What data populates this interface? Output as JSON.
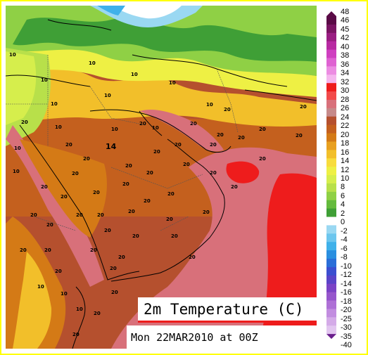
{
  "title": "2m Temperature (C)",
  "subtitle": "Mon 22MAR2010 at 00Z",
  "colorbar": {
    "min": -40,
    "max": 48,
    "labels": [
      "48",
      "46",
      "45",
      "42",
      "40",
      "38",
      "36",
      "34",
      "32",
      "30",
      "28",
      "26",
      "24",
      "22",
      "20",
      "18",
      "16",
      "14",
      "12",
      "10",
      "8",
      "6",
      "4",
      "2",
      "0",
      "-2",
      "-4",
      "-6",
      "-8",
      "-10",
      "-12",
      "-14",
      "-16",
      "-18",
      "-20",
      "-25",
      "-30",
      "-35",
      "-40"
    ],
    "colors": [
      "#5a0a46",
      "#7a1462",
      "#9a1e82",
      "#b82aa2",
      "#cf3fc0",
      "#df62d2",
      "#ec8ce2",
      "#f5b6ee",
      "#ee1c1c",
      "#f24a4a",
      "#d8707a",
      "#c68a8a",
      "#b5502e",
      "#c4601e",
      "#d47a16",
      "#e8a020",
      "#f2bf2a",
      "#f8dc3c",
      "#eef044",
      "#d6ee4c",
      "#b8e04a",
      "#8fd045",
      "#64bb3d",
      "#3f9f36",
      "#ffffff",
      "#9ad8f2",
      "#6cc6ee",
      "#3fb1ea",
      "#2a8fe0",
      "#2a6ed8",
      "#3b4fd0",
      "#5a44c8",
      "#7b43c6",
      "#9656cc",
      "#ae70d6",
      "#c28de0",
      "#d4abe8",
      "#e2c6f0",
      "#6a1e8c"
    ]
  },
  "contour_labels": [
    "10",
    "10",
    "10",
    "10",
    "10",
    "10",
    "10",
    "10",
    "10",
    "10",
    "10",
    "10",
    "10",
    "10",
    "10",
    "10",
    "20",
    "20",
    "20",
    "20",
    "20",
    "20",
    "20",
    "20",
    "20",
    "20",
    "20",
    "20",
    "20",
    "20",
    "20",
    "20",
    "20",
    "20",
    "20",
    "20",
    "20",
    "20",
    "20",
    "20",
    "20",
    "20",
    "20",
    "20",
    "20",
    "20",
    "20",
    "20",
    "20",
    "20",
    "20",
    "20",
    "20",
    "20",
    "20",
    "20",
    "20",
    "20",
    "20",
    "20",
    "20",
    "20",
    "20"
  ],
  "big_label": "14",
  "colors": {
    "deep_sea": "#d8707a",
    "hot_core": "#ee1c1c",
    "orange_land": "#b5502e",
    "mid_land": "#d47a16",
    "yellow_land": "#f2bf2a",
    "green_land": "#64bb3d",
    "dark_green": "#3f9f36",
    "frame": "#ffff00"
  }
}
